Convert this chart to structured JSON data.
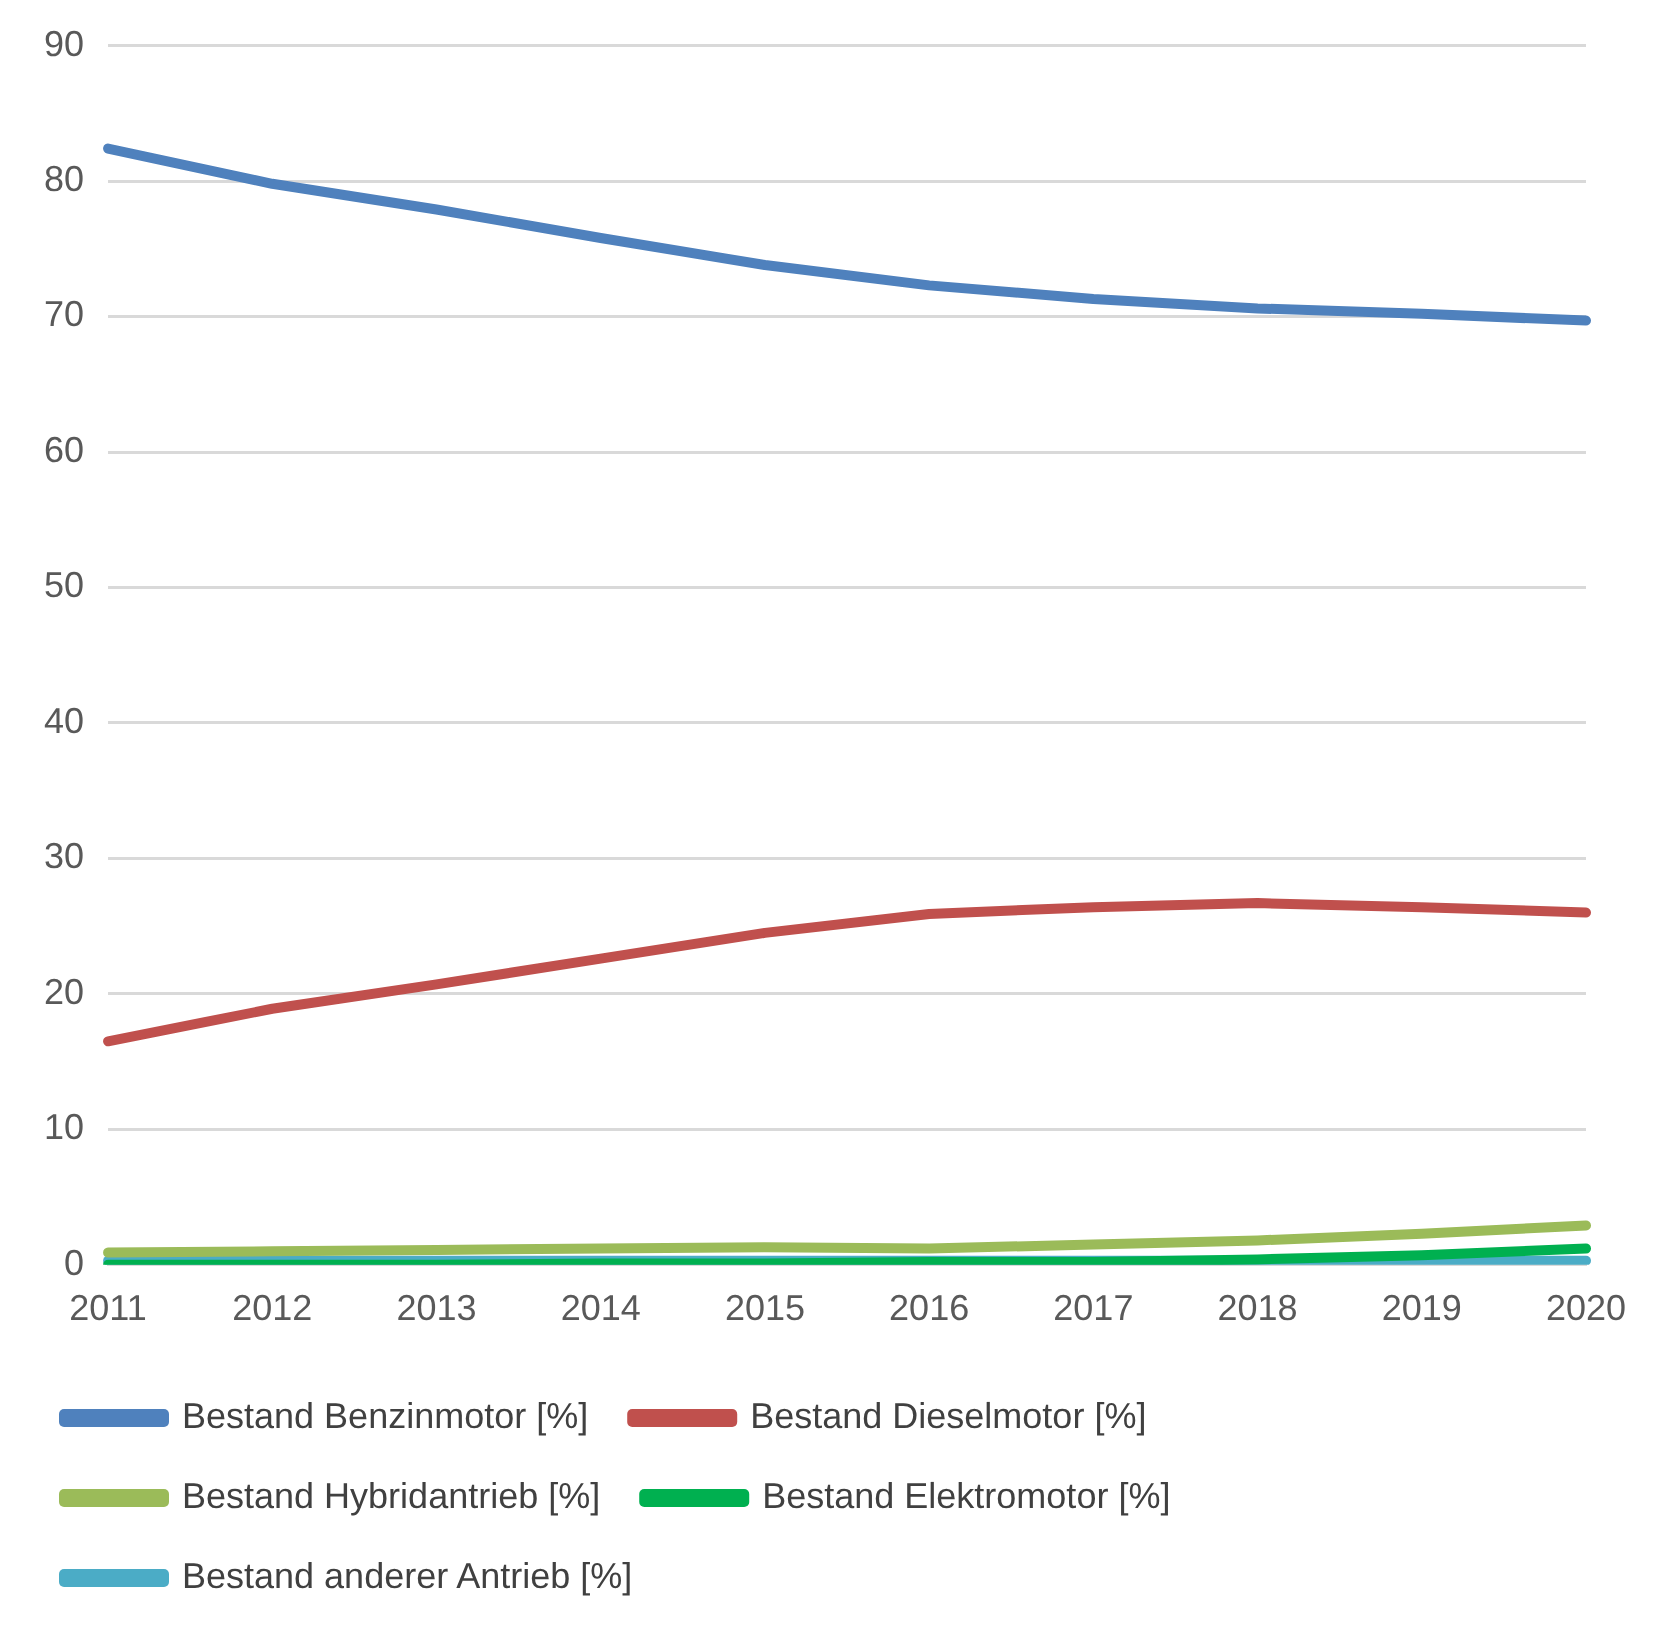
{
  "chart_data": {
    "type": "line",
    "categories": [
      "2011",
      "2012",
      "2013",
      "2014",
      "2015",
      "2016",
      "2017",
      "2018",
      "2019",
      "2020"
    ],
    "series": [
      {
        "name": "Bestand Benzinmotor [%]",
        "color": "#4f81bd",
        "values": [
          82.4,
          79.8,
          77.9,
          75.8,
          73.8,
          72.3,
          71.3,
          70.6,
          70.2,
          69.7
        ]
      },
      {
        "name": "Bestand Dieselmotor [%]",
        "color": "#c0504d",
        "values": [
          16.5,
          18.9,
          20.7,
          22.6,
          24.5,
          25.9,
          26.4,
          26.7,
          26.4,
          26.0
        ]
      },
      {
        "name": "Bestand Hybridantrieb [%]",
        "color": "#9bbb59",
        "values": [
          0.9,
          1.0,
          1.1,
          1.2,
          1.3,
          1.2,
          1.5,
          1.8,
          2.3,
          2.9
        ]
      },
      {
        "name": "Bestand Elektromotor [%]",
        "color": "#00b050",
        "values": [
          0.0,
          0.0,
          0.0,
          0.1,
          0.1,
          0.2,
          0.2,
          0.4,
          0.7,
          1.2
        ]
      },
      {
        "name": "Bestand anderer Antrieb [%]",
        "color": "#4bacc6",
        "values": [
          0.3,
          0.3,
          0.3,
          0.3,
          0.3,
          0.3,
          0.3,
          0.3,
          0.3,
          0.3
        ]
      }
    ],
    "ylim": [
      0,
      90
    ],
    "yticks": [
      0,
      10,
      20,
      30,
      40,
      50,
      60,
      70,
      80,
      90
    ],
    "grid": "y",
    "legend": "bottom",
    "marker": "none",
    "line_style": "solid"
  }
}
